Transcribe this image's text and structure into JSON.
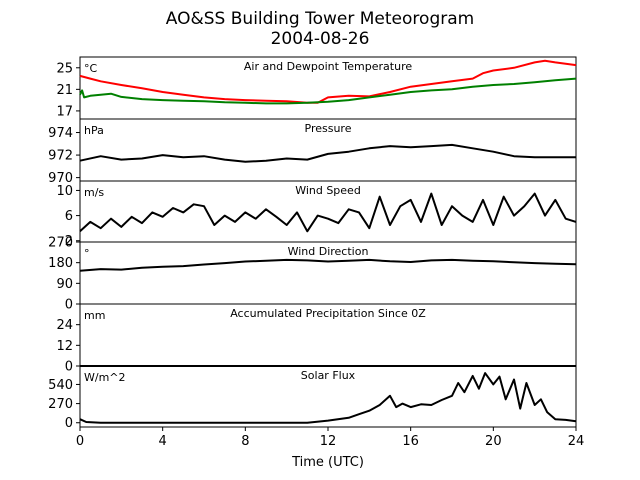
{
  "figure": {
    "title_line1": "AO&SS Building Tower Meteorogram",
    "title_line2": "2004-08-26",
    "xlabel": "Time (UTC)",
    "x_ticks": [
      "0",
      "4",
      "8",
      "12",
      "16",
      "20",
      "24"
    ]
  },
  "chart_data": [
    {
      "type": "line",
      "title": "Air and Dewpoint Temperature",
      "unit": "°C",
      "xlim": [
        0,
        24
      ],
      "ylim": [
        15.5,
        27
      ],
      "yticks": [
        17,
        21,
        25
      ],
      "series": [
        {
          "color": "#ff0000",
          "x": [
            0,
            0.5,
            1,
            2,
            3,
            4,
            5,
            6,
            7,
            8,
            9,
            10,
            11,
            11.5,
            12,
            13,
            14,
            15,
            16,
            17,
            18,
            19,
            19.5,
            20,
            21,
            22,
            22.5,
            23,
            24
          ],
          "y": [
            23.5,
            23.0,
            22.5,
            21.8,
            21.2,
            20.5,
            20.0,
            19.5,
            19.2,
            19.0,
            18.9,
            18.8,
            18.5,
            18.5,
            19.5,
            19.8,
            19.7,
            20.5,
            21.5,
            22.0,
            22.5,
            23.0,
            24.0,
            24.5,
            25.0,
            26.0,
            26.3,
            26.0,
            25.5
          ]
        },
        {
          "color": "#008000",
          "x": [
            0,
            0.1,
            0.2,
            0.5,
            1,
            1.5,
            2,
            3,
            4,
            5,
            6,
            7,
            8,
            9,
            10,
            11,
            12,
            13,
            14,
            15,
            16,
            17,
            18,
            19,
            20,
            21,
            22,
            23,
            24
          ],
          "y": [
            20.0,
            20.8,
            19.5,
            19.8,
            20.0,
            20.2,
            19.6,
            19.2,
            19.0,
            18.9,
            18.8,
            18.6,
            18.5,
            18.4,
            18.4,
            18.5,
            18.7,
            19.0,
            19.5,
            20.0,
            20.5,
            20.8,
            21.0,
            21.5,
            21.8,
            22.0,
            22.3,
            22.7,
            23.0
          ]
        }
      ]
    },
    {
      "type": "line",
      "title": "Pressure",
      "unit": "hPa",
      "xlim": [
        0,
        24
      ],
      "ylim": [
        969.7,
        975.2
      ],
      "yticks": [
        970,
        972,
        974
      ],
      "series": [
        {
          "color": "#000000",
          "x": [
            0,
            1,
            2,
            3,
            4,
            5,
            6,
            7,
            8,
            9,
            10,
            11,
            12,
            13,
            14,
            15,
            16,
            17,
            18,
            19,
            20,
            21,
            22,
            23,
            24
          ],
          "y": [
            971.5,
            971.9,
            971.6,
            971.7,
            972.0,
            971.8,
            971.9,
            971.6,
            971.4,
            971.5,
            971.7,
            971.6,
            972.1,
            972.3,
            972.6,
            972.8,
            972.7,
            972.8,
            972.9,
            972.6,
            972.3,
            971.9,
            971.8,
            971.8,
            971.8
          ]
        }
      ]
    },
    {
      "type": "line",
      "title": "Wind Speed",
      "unit": "m/s",
      "xlim": [
        0,
        24
      ],
      "ylim": [
        1.8,
        11.5
      ],
      "yticks": [
        2,
        6,
        10
      ],
      "series": [
        {
          "color": "#000000",
          "x": [
            0,
            0.5,
            1,
            1.5,
            2,
            2.5,
            3,
            3.5,
            4,
            4.5,
            5,
            5.5,
            6,
            6.5,
            7,
            7.5,
            8,
            8.5,
            9,
            9.5,
            10,
            10.5,
            11,
            11.5,
            12,
            12.5,
            13,
            13.5,
            14,
            14.5,
            15,
            15.5,
            16,
            16.5,
            17,
            17.5,
            18,
            18.5,
            19,
            19.5,
            20,
            20.5,
            21,
            21.5,
            22,
            22.5,
            23,
            23.5,
            24
          ],
          "y": [
            3.5,
            5.0,
            4.0,
            5.5,
            4.2,
            5.8,
            4.8,
            6.5,
            5.8,
            7.2,
            6.5,
            7.8,
            7.5,
            4.5,
            6.0,
            5.0,
            6.5,
            5.5,
            7.0,
            5.8,
            4.5,
            6.5,
            3.5,
            6.0,
            5.5,
            4.8,
            7.0,
            6.5,
            4.0,
            9.0,
            4.5,
            7.5,
            8.5,
            5.0,
            9.5,
            4.5,
            7.5,
            6.0,
            5.0,
            8.5,
            4.5,
            9.0,
            6.0,
            7.5,
            9.5,
            6.0,
            8.5,
            5.5,
            5.0
          ]
        }
      ]
    },
    {
      "type": "line",
      "title": "Wind Direction",
      "unit": "°",
      "xlim": [
        0,
        24
      ],
      "ylim": [
        0,
        270
      ],
      "yticks": [
        0,
        90,
        180,
        270
      ],
      "series": [
        {
          "color": "#000000",
          "x": [
            0,
            1,
            2,
            3,
            4,
            5,
            6,
            7,
            8,
            9,
            10,
            11,
            12,
            13,
            14,
            15,
            16,
            17,
            18,
            19,
            20,
            21,
            22,
            23,
            24
          ],
          "y": [
            145,
            152,
            150,
            158,
            162,
            165,
            172,
            178,
            185,
            188,
            192,
            190,
            185,
            188,
            192,
            186,
            183,
            190,
            192,
            188,
            186,
            182,
            178,
            175,
            173
          ]
        }
      ]
    },
    {
      "type": "line",
      "title": "Accumulated Precipitation Since 0Z",
      "unit": "mm",
      "xlim": [
        0,
        24
      ],
      "ylim": [
        0,
        36
      ],
      "yticks": [
        0,
        12,
        24
      ],
      "series": [
        {
          "color": "#000000",
          "x": [
            0,
            24
          ],
          "y": [
            0,
            0
          ]
        }
      ]
    },
    {
      "type": "line",
      "title": "Solar Flux",
      "unit": "W/m^2",
      "xlim": [
        0,
        24
      ],
      "ylim": [
        -60,
        800
      ],
      "yticks": [
        0,
        270,
        540
      ],
      "series": [
        {
          "color": "#000000",
          "x": [
            0,
            0.3,
            1,
            2,
            4,
            6,
            8,
            10,
            11,
            12,
            13,
            13.5,
            14,
            14.5,
            15,
            15.3,
            15.6,
            16,
            16.5,
            17,
            17.5,
            18,
            18.3,
            18.6,
            19,
            19.3,
            19.6,
            20,
            20.3,
            20.6,
            21,
            21.3,
            21.6,
            22,
            22.3,
            22.6,
            23,
            23.5,
            24
          ],
          "y": [
            50,
            10,
            0,
            0,
            0,
            0,
            0,
            0,
            0,
            30,
            70,
            120,
            170,
            250,
            380,
            220,
            270,
            220,
            260,
            250,
            320,
            380,
            560,
            430,
            660,
            480,
            700,
            540,
            650,
            330,
            610,
            200,
            560,
            250,
            330,
            150,
            50,
            40,
            20
          ]
        }
      ]
    }
  ]
}
